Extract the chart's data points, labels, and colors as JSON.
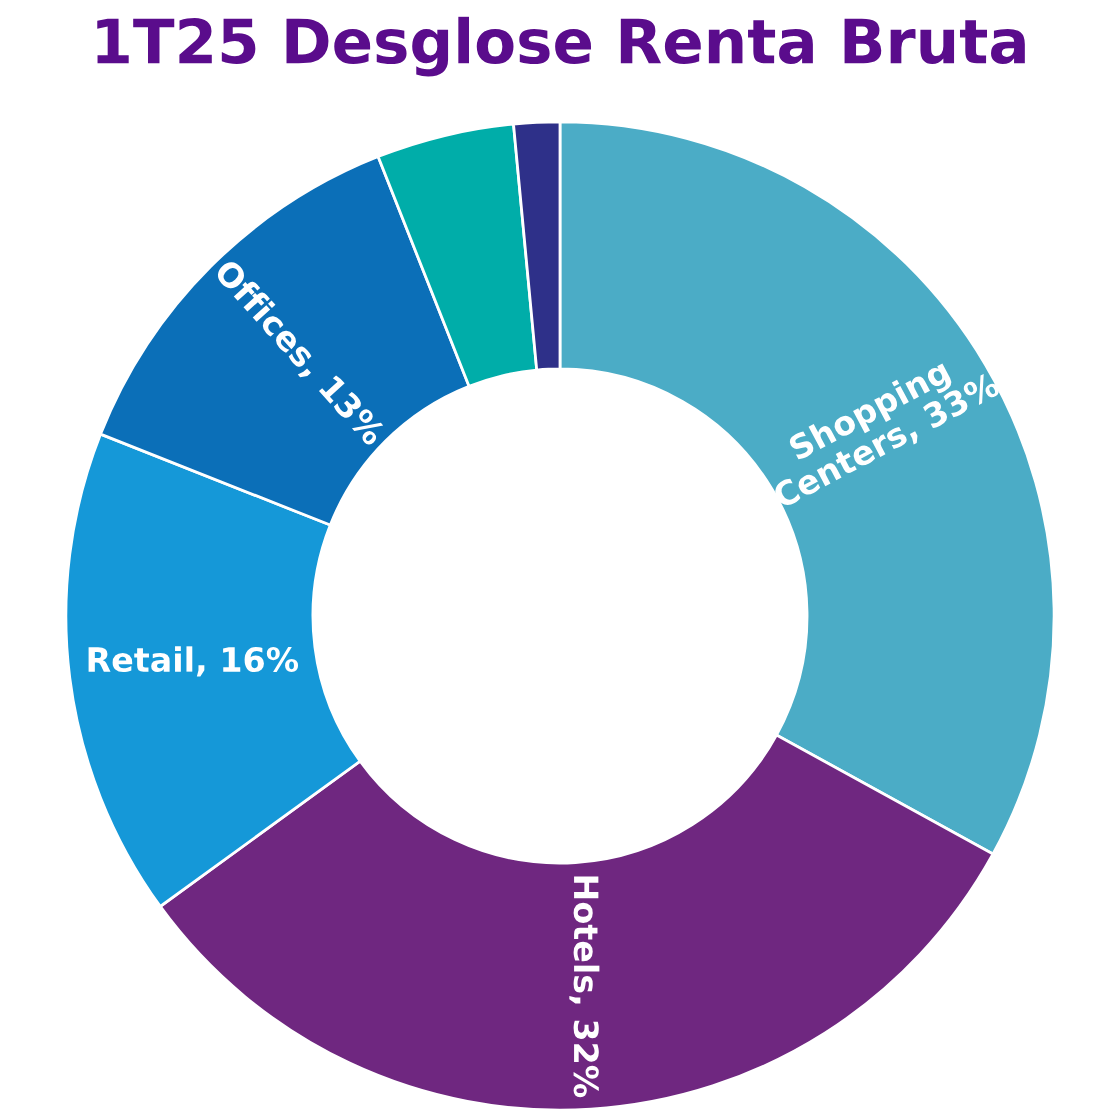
{
  "chart_data": {
    "type": "donut",
    "title": "1T25 Desglose Renta Bruta",
    "categories": [
      "Shopping Centers",
      "Hotels",
      "Retail",
      "Offices",
      null,
      null
    ],
    "values": [
      33,
      32,
      16,
      13,
      4.5,
      1.5
    ],
    "value_labels": [
      "33%",
      "32%",
      "16%",
      "13%",
      null,
      null
    ],
    "colors": [
      "#4bacc6",
      "#6f2780",
      "#1598d8",
      "#0b6fb8",
      "#00ada9",
      "#2e3089"
    ]
  }
}
